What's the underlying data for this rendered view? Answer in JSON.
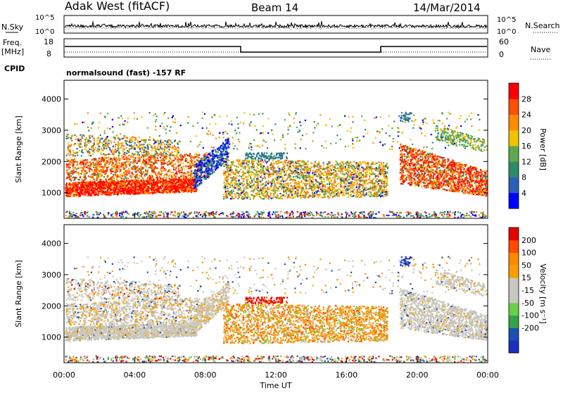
{
  "header": {
    "station": "Adak West (fitACF)",
    "beam": "Beam 14",
    "date": "14/Mar/2014"
  },
  "nsky_panel": {
    "left_label": "N.Sky",
    "left_ticks": [
      "10^5",
      "10^0"
    ],
    "right_label": "N.Search",
    "right_ticks": [
      "10^5",
      "10^0"
    ]
  },
  "freq_panel": {
    "left_label_line1": "Freq.",
    "left_label_line2": "[MHz]",
    "left_ticks": [
      "18",
      "8"
    ],
    "right_label": "Nave",
    "right_ticks": [
      "60",
      "0"
    ],
    "cpid_label": "CPID",
    "cpid_text": "normalsound (fast) -157 RF"
  },
  "colors": {
    "power_scale": [
      "#0000ff",
      "#2a5fb8",
      "#2f8a6a",
      "#5fa84f",
      "#f2c300",
      "#ff8c00",
      "#ff4f00",
      "#ff0000"
    ],
    "velocity_scale": [
      "#e20000",
      "#ff4a00",
      "#ff8c00",
      "#f5a000",
      "#c8c8c0",
      "#c8c8c0",
      "#6ad04a",
      "#34a24a",
      "#1d4fb0",
      "#1b2fc0"
    ]
  },
  "chart_data": [
    {
      "type": "heatmap",
      "name": "Power panel",
      "ylabel": "Slant Range [km]",
      "y_ticks": [
        "1000",
        "2000",
        "3000",
        "4000"
      ],
      "x_ticks": [
        "00:00",
        "04:00",
        "08:00",
        "12:00",
        "16:00",
        "20:00",
        "00:00"
      ],
      "xlim_hours": [
        0,
        24
      ],
      "ylim_km": [
        180,
        4600
      ],
      "colorbar_label": "Power [dB]",
      "colorbar_ticks": [
        "4",
        "8",
        "12",
        "16",
        "20",
        "24",
        "28"
      ]
    },
    {
      "type": "heatmap",
      "name": "Velocity panel",
      "ylabel": "Slant Range [km]",
      "y_ticks": [
        "1000",
        "2000",
        "3000",
        "4000"
      ],
      "x_ticks": [
        "00:00",
        "04:00",
        "08:00",
        "12:00",
        "16:00",
        "20:00",
        "00:00"
      ],
      "xlabel": "Time UT",
      "xlim_hours": [
        0,
        24
      ],
      "ylim_km": [
        180,
        4600
      ],
      "colorbar_label": "Velocity [m s⁻¹]",
      "colorbar_ticks": [
        "200",
        "100",
        "50",
        "15",
        "-15",
        "-50",
        "-100",
        "-200"
      ]
    }
  ]
}
